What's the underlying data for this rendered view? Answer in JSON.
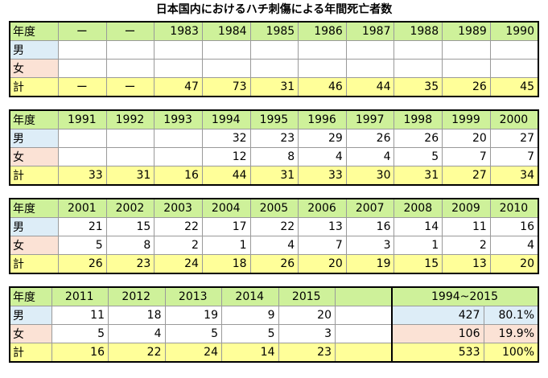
{
  "title": "日本国内におけるハチ刺傷による年間死亡者数",
  "labels": {
    "year": "年度",
    "male": "男",
    "female": "女",
    "total": "計"
  },
  "blocks": [
    {
      "years": [
        "ー",
        "ー",
        "1983",
        "1984",
        "1985",
        "1986",
        "1987",
        "1988",
        "1989",
        "1990"
      ],
      "male": [
        "",
        "",
        "",
        "",
        "",
        "",
        "",
        "",
        "",
        ""
      ],
      "female": [
        "",
        "",
        "",
        "",
        "",
        "",
        "",
        "",
        "",
        ""
      ],
      "total": [
        "ー",
        "ー",
        "47",
        "73",
        "31",
        "46",
        "44",
        "35",
        "26",
        "45"
      ]
    },
    {
      "years": [
        "1991",
        "1992",
        "1993",
        "1994",
        "1995",
        "1996",
        "1997",
        "1998",
        "1999",
        "2000"
      ],
      "male": [
        "",
        "",
        "",
        "32",
        "23",
        "29",
        "26",
        "26",
        "20",
        "27"
      ],
      "female": [
        "",
        "",
        "",
        "12",
        "8",
        "4",
        "4",
        "5",
        "7",
        "7"
      ],
      "total": [
        "33",
        "31",
        "16",
        "44",
        "31",
        "33",
        "30",
        "31",
        "27",
        "34"
      ]
    },
    {
      "years": [
        "2001",
        "2002",
        "2003",
        "2004",
        "2005",
        "2006",
        "2007",
        "2008",
        "2009",
        "2010"
      ],
      "male": [
        "21",
        "15",
        "22",
        "17",
        "22",
        "13",
        "16",
        "14",
        "11",
        "16"
      ],
      "female": [
        "5",
        "8",
        "2",
        "1",
        "4",
        "7",
        "3",
        "1",
        "2",
        "4"
      ],
      "total": [
        "26",
        "23",
        "24",
        "18",
        "26",
        "20",
        "19",
        "15",
        "13",
        "20"
      ]
    },
    {
      "years": [
        "2011",
        "2012",
        "2013",
        "2014",
        "2015",
        ""
      ],
      "male": [
        "11",
        "18",
        "19",
        "9",
        "20",
        ""
      ],
      "female": [
        "5",
        "4",
        "5",
        "5",
        "3",
        ""
      ],
      "total": [
        "16",
        "22",
        "24",
        "14",
        "23",
        ""
      ]
    }
  ],
  "summary": {
    "range": "1994~2015",
    "male": {
      "count": "427",
      "pct": "80.1%"
    },
    "female": {
      "count": "106",
      "pct": "19.9%"
    },
    "total": {
      "count": "533",
      "pct": "100%"
    }
  }
}
